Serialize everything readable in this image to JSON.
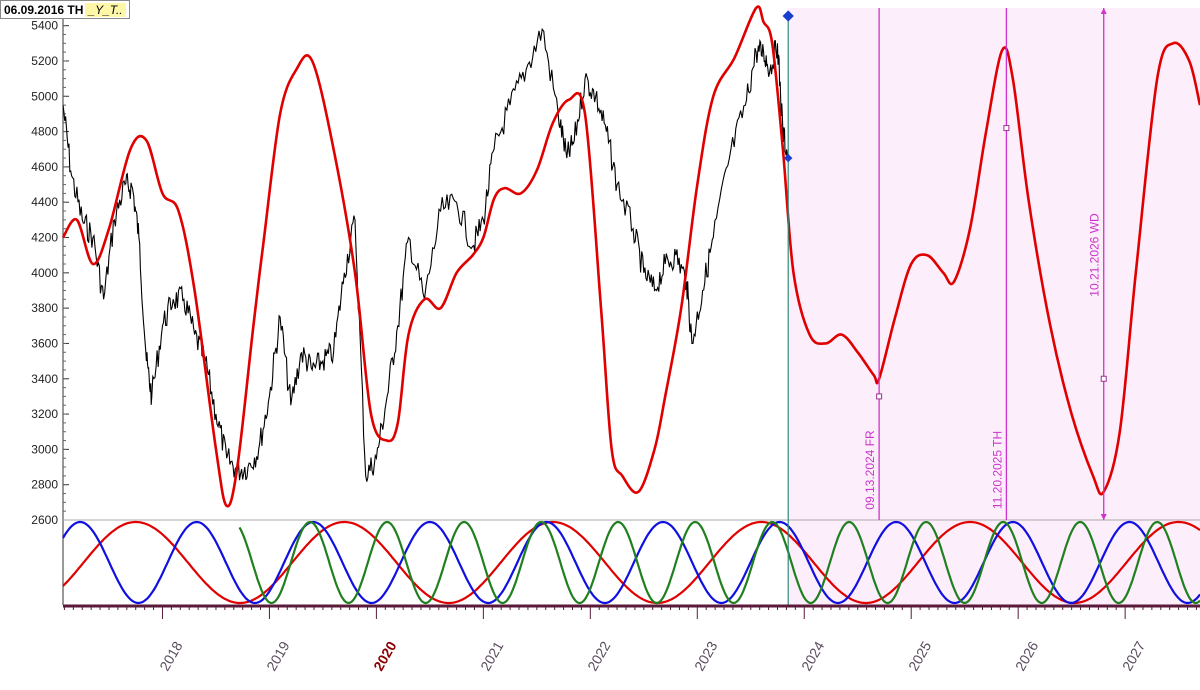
{
  "header": {
    "date_label": "06.09.2016 TH",
    "tag_label": "_Y_T.."
  },
  "colors": {
    "price": "#000000",
    "composite": "#e00000",
    "cycle_red": "#e00000",
    "cycle_blue": "#1010e0",
    "cycle_green": "#208020",
    "forecast_bg": "#fdeefb",
    "marker": "#cc33cc",
    "now_line": "#2e8b7a"
  },
  "chart_data": {
    "type": "line",
    "title": "",
    "xlabel": "",
    "ylabel": "",
    "xlim": [
      2017.07,
      2027.7
    ],
    "ylim": [
      2600,
      5500
    ],
    "y_ticks": [
      2600,
      2800,
      3000,
      3200,
      3400,
      3600,
      3800,
      4000,
      4200,
      4400,
      4600,
      4800,
      5000,
      5200,
      5400
    ],
    "x_ticks": [
      "2018",
      "2019",
      "2020",
      "2021",
      "2022",
      "2023",
      "2024",
      "2025",
      "2026",
      "2027"
    ],
    "highlight_tick": "2020",
    "grid": false,
    "forecast_start": 2023.85,
    "series": [
      {
        "role": "price",
        "x": [
          2017.07,
          2017.15,
          2017.25,
          2017.35,
          2017.45,
          2017.55,
          2017.65,
          2017.72,
          2017.78,
          2017.85,
          2017.9,
          2018.0,
          2018.1,
          2018.2,
          2018.3,
          2018.4,
          2018.5,
          2018.6,
          2018.7,
          2018.8,
          2018.9,
          2019.0,
          2019.1,
          2019.2,
          2019.3,
          2019.4,
          2019.5,
          2019.6,
          2019.7,
          2019.8,
          2019.9,
          2020.0,
          2020.1,
          2020.2,
          2020.3,
          2020.45,
          2020.6,
          2020.75,
          2020.9,
          2021.0,
          2021.1,
          2021.25,
          2021.4,
          2021.55,
          2021.7,
          2021.78,
          2021.85,
          2021.95,
          2022.05,
          2022.15,
          2022.25,
          2022.4,
          2022.5,
          2022.6,
          2022.7,
          2022.8,
          2022.9,
          2022.95,
          2023.05,
          2023.15,
          2023.3,
          2023.45,
          2023.55,
          2023.62,
          2023.68,
          2023.75,
          2023.8,
          2023.85
        ],
        "y": [
          4950,
          4550,
          4300,
          4200,
          3850,
          4300,
          4500,
          4480,
          4200,
          3500,
          3300,
          3700,
          3850,
          3850,
          3650,
          3500,
          3200,
          2950,
          2880,
          2900,
          3000,
          3300,
          3750,
          3250,
          3550,
          3450,
          3500,
          3550,
          4000,
          4300,
          2850,
          2950,
          3300,
          3700,
          4200,
          3850,
          4350,
          4400,
          4150,
          4300,
          4700,
          4950,
          5150,
          5380,
          4900,
          4650,
          4750,
          5100,
          5000,
          4800,
          4500,
          4250,
          4000,
          3900,
          4050,
          4100,
          3950,
          3600,
          3900,
          4200,
          4650,
          4950,
          5250,
          5250,
          5150,
          5300,
          4800,
          4650
        ]
      },
      {
        "role": "composite",
        "x": [
          2017.07,
          2017.2,
          2017.35,
          2017.5,
          2017.7,
          2017.85,
          2018.0,
          2018.15,
          2018.3,
          2018.5,
          2018.6,
          2018.7,
          2018.85,
          2018.95,
          2019.1,
          2019.25,
          2019.4,
          2019.6,
          2019.8,
          2019.95,
          2020.1,
          2020.2,
          2020.3,
          2020.45,
          2020.6,
          2020.75,
          2020.9,
          2021.0,
          2021.1,
          2021.2,
          2021.35,
          2021.5,
          2021.65,
          2021.8,
          2021.95,
          2022.1,
          2022.2,
          2022.3,
          2022.45,
          2022.6,
          2022.7,
          2022.85,
          2023.0,
          2023.15,
          2023.35,
          2023.55,
          2023.62,
          2023.7,
          2023.8,
          2023.9,
          2024.05,
          2024.2,
          2024.35,
          2024.5,
          2024.65,
          2024.7,
          2024.85,
          2025.0,
          2025.15,
          2025.3,
          2025.4,
          2025.55,
          2025.7,
          2025.85,
          2025.95,
          2026.1,
          2026.3,
          2026.5,
          2026.7,
          2026.8,
          2026.95,
          2027.1,
          2027.3,
          2027.45,
          2027.6,
          2027.7
        ],
        "y": [
          4200,
          4300,
          4050,
          4250,
          4700,
          4750,
          4450,
          4350,
          3900,
          3000,
          2680,
          2900,
          3700,
          4200,
          4900,
          5150,
          5200,
          4700,
          4000,
          3200,
          3050,
          3150,
          3650,
          3850,
          3800,
          4000,
          4100,
          4200,
          4420,
          4480,
          4450,
          4580,
          4850,
          4980,
          4900,
          3800,
          3000,
          2850,
          2760,
          3000,
          3300,
          3800,
          4500,
          5000,
          5220,
          5500,
          5420,
          5300,
          4700,
          4000,
          3650,
          3600,
          3650,
          3550,
          3420,
          3400,
          3750,
          4050,
          4100,
          4000,
          3950,
          4250,
          4800,
          5260,
          5100,
          4400,
          3700,
          3200,
          2850,
          2760,
          3100,
          4000,
          5100,
          5300,
          5200,
          4950
        ]
      }
    ],
    "cycles": [
      {
        "color": "red",
        "period_years": 1.95,
        "peak_year": 2017.75,
        "start_year": 2017.07
      },
      {
        "color": "blue",
        "period_years": 1.09,
        "peak_year": 2018.32,
        "start_year": 2017.07
      },
      {
        "color": "green",
        "period_years": 0.72,
        "peak_year": 2019.38,
        "start_year": 2018.72
      }
    ],
    "markers": [
      {
        "year": 2024.7,
        "label": "09.13.2024 FR",
        "value": 3300
      },
      {
        "year": 2025.89,
        "label": "11.20.2025 TH",
        "value": 4820
      },
      {
        "year": 2026.8,
        "label": "10.21.2026 WD",
        "value": 3400
      }
    ]
  }
}
